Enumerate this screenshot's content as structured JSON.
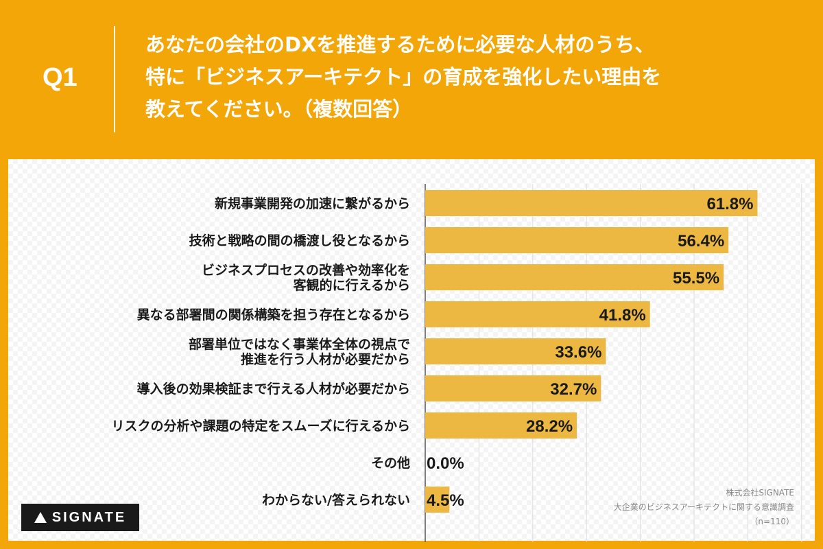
{
  "header": {
    "q_label": "Q1",
    "question_lines": [
      "あなたの会社のDXを推進するために必要な人材のうち、",
      "特に「ビジネスアーキテクト」の育成を強化したい理由を",
      "教えてください。（複数回答）"
    ]
  },
  "colors": {
    "background": "#F3A608",
    "bar": "#EDB842",
    "text": "#1a1a1a"
  },
  "chart_data": {
    "type": "bar",
    "orientation": "horizontal",
    "categories": [
      [
        "新規事業開発の加速に繋がるから"
      ],
      [
        "技術と戦略の間の橋渡し役となるから"
      ],
      [
        "ビジネスプロセスの改善や効率化を",
        "客観的に行えるから"
      ],
      [
        "異なる部署間の関係構築を担う存在となるから"
      ],
      [
        "部署単位ではなく事業体全体の視点で",
        "推進を行う人材が必要だから"
      ],
      [
        "導入後の効果検証まで行える人材が必要だから"
      ],
      [
        "リスクの分析や課題の特定をスムーズに行えるから"
      ],
      [
        "その他"
      ],
      [
        "わからない/答えられない"
      ]
    ],
    "values": [
      61.8,
      56.4,
      55.5,
      41.8,
      33.6,
      32.7,
      28.2,
      0.0,
      4.5
    ],
    "value_labels": [
      "61.8%",
      "56.4%",
      "55.5%",
      "41.8%",
      "33.6%",
      "32.7%",
      "28.2%",
      "0.0%",
      "4.5%"
    ],
    "xlim": [
      0,
      70
    ],
    "grid": true
  },
  "footer": {
    "logo_text": "SIGNATE",
    "source_lines": [
      "株式会社SIGNATE",
      "大企業のビジネスアーキテクトに関する意識調査",
      "（n=110）"
    ]
  }
}
